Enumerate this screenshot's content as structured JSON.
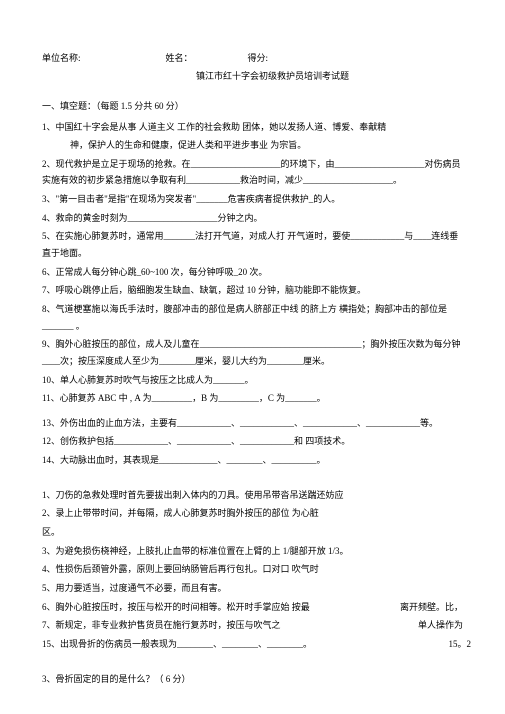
{
  "header": {
    "unit_label": "单位名称:",
    "name_label": "姓名：",
    "score_label": "得分:",
    "title": "镇江市红十字会初级救护员培训考试题"
  },
  "section1": {
    "header": "一、填空题：（每题 1.5 分共 60 分）",
    "q1_line1": "1、中国红十字会是从事 人道主义 工作的社会救助 团体，她以发扬人道、博爱、奉献精",
    "q1_line2": "神，保护人的生命和健康，促进人类和平进步事业          为宗旨。",
    "q2": "2、现代救护是立足于现场的抢救。在____________________的环境下，由____________________对伤病员实施有效的初步紧急措施以争取有利____________救治时间，减少____________________。",
    "q3": "3、\"第一目击者\"是指\"在现场为突发者\"_______危害疾病者提供救护_的人。",
    "q4": "4、救命的黄金时刻为____________________分钟之内。",
    "q5": "5、在实施心肺复苏时，通常用_______法打开气道，对成人打 开气道时，要使____________与____连线垂直于地面。",
    "q6": "6、正常成人每分钟心跳_60~100 次，每分钟呼吸_20 次。",
    "q7": "7、呼吸心跳停止后，脑细胞发生缺血、缺氧，超过    10 分钟，脑功能即不能恢复。",
    "q8": "8、气道梗塞施以海氏手法时，腹部冲击的部位是病人脐部正中线           的脐上方    横指处；胸部冲击的部位是_______ 。",
    "q9": "9、胸外心脏按压的部位，成人及儿童在____________________________________；胸外按压次数为每分钟____次；按压深度成人至少为________厘米，婴儿大约为________厘米。",
    "q10": "10、单人心肺复苏时吹气与按压之比成人为_______。",
    "q11": "11、心肺复苏 ABC 中 , A 为_________，B 为_________，C 为_______。",
    "q12_empty": "",
    "q13": "13、外伤出血的止血方法，主要有____________、____________、____________、____________等。",
    "q14": "12、创伤救护包括____________、____________、____________和    四项技术。",
    "q14b": "14、大动脉出血时，其表现是_____________、________、__________。"
  },
  "column_questions": {
    "q1": "1、刀伤的急救处理时首先要拔出刺入体内的刀具。使用吊带沓吊送踹还妨应",
    "q2_line1": "2、录上止带带时间，并每隔，成人心肺复苏时胸外按压的部位 为心脏",
    "q2_line2": "区。",
    "q3": "3、为避免损伤桡神经，上肢扎止血带的标准位置在上臂的上 1/腿部开放    1/3。",
    "q4": "4、性损伤后颈管外露，原则上要回纳肠管后再行包扎。口对口 吹气时",
    "q5": "5、用力要适当，过度通气不必要，而且有害。",
    "q6": "6、胸外心脏按压时，按压与松开的时间相等。松开时手掌应始 按最",
    "q6_right": "离开频壁。比，",
    "q7": "7、新规定，非专业救护售货员在施行复苏时，按压与吹气之",
    "q7_right": "单人操作为",
    "q15": "15、出现骨折的伤病员一般表现为________、________、________。",
    "q15_right": "15。2"
  },
  "section3": {
    "header": "3、骨折固定的目的是什么？（    6 分）"
  }
}
